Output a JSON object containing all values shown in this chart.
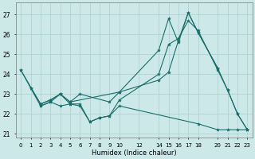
{
  "xlabel": "Humidex (Indice chaleur)",
  "bg_color": "#cce8e8",
  "grid_color": "#aacfcf",
  "line_color": "#1a6e6a",
  "xlim": [
    -0.5,
    23.5
  ],
  "ylim": [
    20.8,
    27.6
  ],
  "yticks": [
    21,
    22,
    23,
    24,
    25,
    26,
    27
  ],
  "xticks": [
    0,
    1,
    2,
    3,
    4,
    5,
    6,
    7,
    8,
    9,
    10,
    12,
    14,
    15,
    16,
    17,
    18,
    20,
    21,
    22,
    23
  ],
  "xtick_labels": [
    "0",
    "1",
    "2",
    "3",
    "4",
    "5",
    "6",
    "7",
    "8",
    "9",
    "10",
    "12",
    "1415161718",
    "",
    "",
    "",
    "",
    "20212223",
    "",
    "",
    ""
  ],
  "series": [
    {
      "x": [
        0,
        1,
        2,
        3,
        4,
        5,
        6,
        7,
        8,
        9,
        10,
        14,
        15,
        16,
        17,
        18,
        20,
        21,
        22,
        23
      ],
      "y": [
        24.2,
        23.3,
        22.4,
        22.6,
        23.0,
        22.5,
        22.5,
        21.6,
        21.8,
        21.9,
        22.7,
        24.0,
        25.5,
        25.8,
        26.7,
        26.2,
        24.2,
        23.2,
        22.0,
        21.2
      ]
    },
    {
      "x": [
        0,
        2,
        3,
        4,
        5,
        10,
        14,
        15,
        16,
        17,
        18,
        20
      ],
      "y": [
        24.2,
        22.5,
        22.7,
        23.0,
        22.6,
        23.1,
        25.2,
        26.8,
        25.6,
        27.1,
        26.1,
        24.3
      ]
    },
    {
      "x": [
        1,
        2,
        3,
        4,
        5,
        6,
        9,
        10,
        14,
        15,
        16,
        17,
        18,
        20,
        21,
        22,
        23
      ],
      "y": [
        23.3,
        22.5,
        22.7,
        23.0,
        22.6,
        23.0,
        22.6,
        23.1,
        23.7,
        24.1,
        25.7,
        27.1,
        26.1,
        24.3,
        23.2,
        22.0,
        21.2
      ]
    },
    {
      "x": [
        2,
        3,
        4,
        5,
        6,
        7,
        8,
        9,
        10,
        18,
        20,
        21,
        22,
        23
      ],
      "y": [
        22.4,
        22.6,
        22.4,
        22.5,
        22.4,
        21.6,
        21.8,
        21.9,
        22.4,
        21.5,
        21.2,
        21.2,
        21.2,
        21.2
      ]
    }
  ]
}
